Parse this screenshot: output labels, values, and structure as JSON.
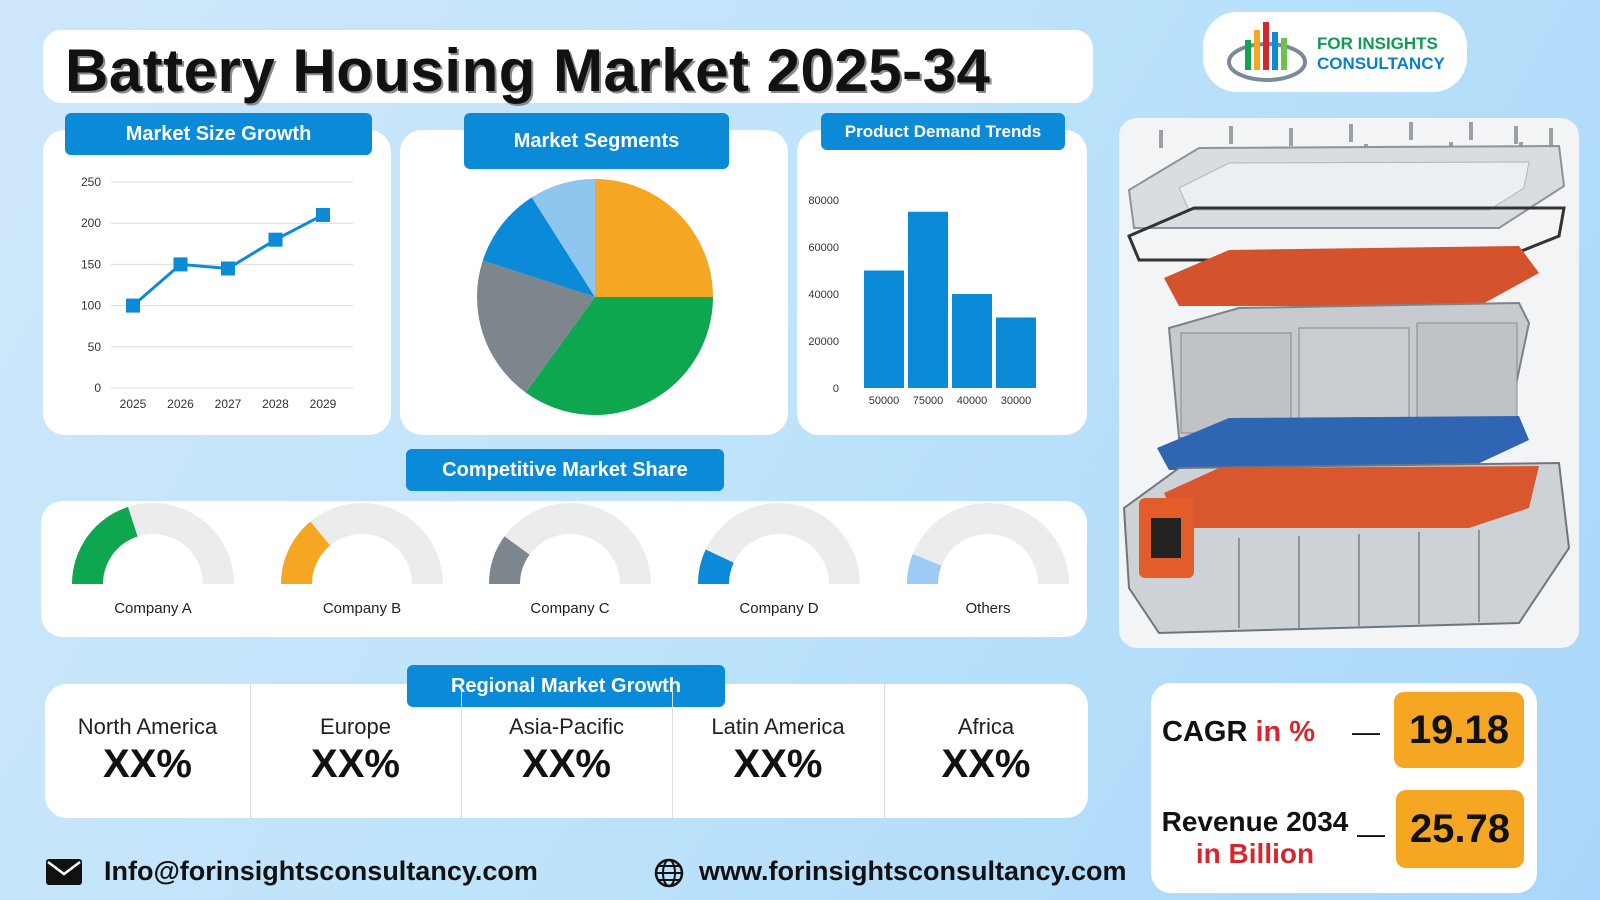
{
  "header": {
    "title": "Battery Housing Market 2025-34",
    "logo_line1": "FOR INSIGHTS",
    "logo_line2": "CONSULTANCY"
  },
  "sections": {
    "market_size": "Market Size Growth",
    "segments": "Market Segments",
    "demand": "Product Demand Trends",
    "competitive": "Competitive Market Share",
    "regional": "Regional Market Growth"
  },
  "competitors": [
    {
      "name": "Company A",
      "share": 0.4,
      "color": "#0ea64f"
    },
    {
      "name": "Company B",
      "share": 0.28,
      "color": "#f5a623"
    },
    {
      "name": "Company C",
      "share": 0.2,
      "color": "#7d868c"
    },
    {
      "name": "Company D",
      "share": 0.14,
      "color": "#0b8ad8"
    },
    {
      "name": "Others",
      "share": 0.12,
      "color": "#9ccbf5"
    }
  ],
  "regions": [
    {
      "name": "North America",
      "value": "XX%"
    },
    {
      "name": "Europe",
      "value": "XX%"
    },
    {
      "name": "Asia-Pacific",
      "value": "XX%"
    },
    {
      "name": "Latin America",
      "value": "XX%"
    },
    {
      "name": "Africa",
      "value": "XX%"
    }
  ],
  "stats": {
    "cagr_label": "CAGR",
    "cagr_unit": "in %",
    "cagr_value": "19.18",
    "revenue_label": "Revenue 2034",
    "revenue_unit": "in Billion",
    "revenue_value": "25.78",
    "dash": "—"
  },
  "footer": {
    "email": "Info@forinsightsconsultancy.com",
    "website": "www.forinsightsconsultancy.com"
  },
  "colors": {
    "accent_blue": "#0b8ad8",
    "green": "#0ea64f",
    "orange": "#f5a623",
    "gray": "#7d868c",
    "light_blue": "#8ec6ee",
    "red_text": "#d6262e"
  },
  "chart_data": [
    {
      "type": "line",
      "x": [
        "2025",
        "2026",
        "2027",
        "2028",
        "2029"
      ],
      "values": [
        100,
        150,
        145,
        180,
        210
      ],
      "ylim": [
        0,
        250
      ],
      "yticks": [
        0,
        50,
        100,
        150,
        200,
        250
      ],
      "grid": true
    },
    {
      "type": "pie",
      "values": [
        25,
        35,
        20,
        11,
        9
      ],
      "colors": [
        "#f5a623",
        "#0ea64f",
        "#7d868c",
        "#0b8ad8",
        "#8ec6ee"
      ]
    },
    {
      "type": "bar",
      "categories": [
        "50000",
        "75000",
        "40000",
        "30000"
      ],
      "values": [
        50000,
        75000,
        40000,
        30000
      ],
      "ylim": [
        0,
        80000
      ],
      "yticks": [
        0,
        20000,
        40000,
        60000,
        80000
      ]
    }
  ]
}
